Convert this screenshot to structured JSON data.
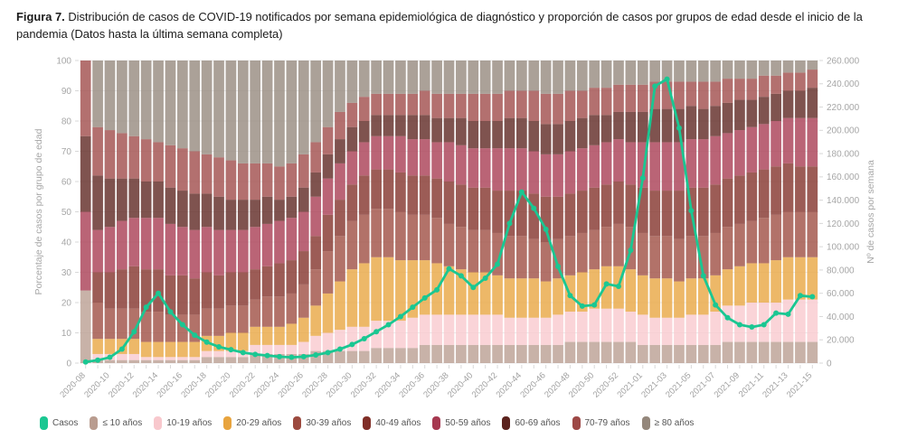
{
  "title": {
    "bold": "Figura 7.",
    "rest": " Distribución de casos de COVID-19 notificados por semana epidemiológica de diagnóstico y proporción de casos por grupos de edad desde el inicio de la pandemia (Datos hasta la última semana completa)"
  },
  "chart_data": {
    "type": "combo_stacked100_bar_plus_line",
    "left_axis": {
      "label": "Porcentaje de casos por grupo de edad",
      "min": 0,
      "max": 100,
      "step": 10
    },
    "right_axis": {
      "label": "Nº de casos por semana",
      "min": 0,
      "max": 260000,
      "step": 20000
    },
    "weeks": [
      "2020-08",
      "2020-09",
      "2020-10",
      "2020-11",
      "2020-12",
      "2020-13",
      "2020-14",
      "2020-15",
      "2020-16",
      "2020-17",
      "2020-18",
      "2020-19",
      "2020-20",
      "2020-21",
      "2020-22",
      "2020-23",
      "2020-24",
      "2020-25",
      "2020-26",
      "2020-27",
      "2020-28",
      "2020-29",
      "2020-30",
      "2020-31",
      "2020-32",
      "2020-33",
      "2020-34",
      "2020-35",
      "2020-36",
      "2020-37",
      "2020-38",
      "2020-39",
      "2020-40",
      "2020-41",
      "2020-42",
      "2020-43",
      "2020-44",
      "2020-45",
      "2020-46",
      "2020-47",
      "2020-48",
      "2020-49",
      "2020-50",
      "2020-51",
      "2020-52",
      "2020-53",
      "2021-01",
      "2021-02",
      "2021-03",
      "2021-04",
      "2021-05",
      "2021-06",
      "2021-07",
      "2021-08",
      "2021-09",
      "2021-10",
      "2021-11",
      "2021-12",
      "2021-13",
      "2021-14",
      "2021-15"
    ],
    "x_tick_labels": [
      "2020-08",
      "2020-10",
      "2020-12",
      "2020-14",
      "2020-16",
      "2020-18",
      "2020-20",
      "2020-22",
      "2020-24",
      "2020-26",
      "2020-28",
      "2020-30",
      "2020-32",
      "2020-34",
      "2020-36",
      "2020-38",
      "2020-40",
      "2020-42",
      "2020-44",
      "2020-46",
      "2020-48",
      "2020-50",
      "2020-52",
      "2021-01",
      "2021-03",
      "2021-05",
      "2021-07",
      "2021-09",
      "2021-11",
      "2021-13",
      "2021-15"
    ],
    "groups": [
      {
        "name": "≤ 10 años",
        "color": "#B99C8F"
      },
      {
        "name": "10-19 años",
        "color": "#F8C8CD"
      },
      {
        "name": "20-29 años",
        "color": "#E8A43E"
      },
      {
        "name": "30-39 años",
        "color": "#9C4A3F"
      },
      {
        "name": "40-49 años",
        "color": "#802E27"
      },
      {
        "name": "50-59 años",
        "color": "#A63850"
      },
      {
        "name": "60-69 años",
        "color": "#5B221D"
      },
      {
        "name": "70-79 años",
        "color": "#9D4846"
      },
      {
        "name": "≥ 80 años",
        "color": "#94877B"
      }
    ],
    "stacks_percent_by_week": [
      [
        24,
        0,
        0,
        0,
        0,
        26,
        25,
        25,
        0
      ],
      [
        1,
        2,
        5,
        12,
        10,
        14,
        18,
        16,
        22
      ],
      [
        1,
        2,
        5,
        10,
        12,
        15,
        16,
        16,
        23
      ],
      [
        1,
        2,
        5,
        10,
        13,
        16,
        14,
        15,
        24
      ],
      [
        1,
        2,
        5,
        10,
        14,
        16,
        13,
        14,
        25
      ],
      [
        1,
        1,
        5,
        10,
        14,
        17,
        12,
        14,
        26
      ],
      [
        1,
        1,
        5,
        10,
        14,
        17,
        12,
        13,
        27
      ],
      [
        1,
        1,
        5,
        9,
        13,
        17,
        12,
        14,
        28
      ],
      [
        1,
        1,
        5,
        9,
        13,
        16,
        12,
        14,
        29
      ],
      [
        1,
        1,
        5,
        9,
        12,
        16,
        12,
        14,
        30
      ],
      [
        2,
        2,
        5,
        9,
        12,
        15,
        11,
        13,
        31
      ],
      [
        2,
        2,
        5,
        9,
        11,
        15,
        11,
        13,
        32
      ],
      [
        2,
        2,
        6,
        9,
        11,
        14,
        10,
        13,
        33
      ],
      [
        2,
        2,
        6,
        9,
        11,
        14,
        10,
        12,
        34
      ],
      [
        3,
        3,
        6,
        9,
        10,
        14,
        9,
        12,
        34
      ],
      [
        3,
        3,
        6,
        10,
        10,
        14,
        9,
        11,
        34
      ],
      [
        3,
        3,
        6,
        10,
        11,
        14,
        7,
        11,
        35
      ],
      [
        3,
        3,
        7,
        10,
        11,
        14,
        7,
        11,
        34
      ],
      [
        3,
        4,
        8,
        11,
        11,
        13,
        8,
        11,
        31
      ],
      [
        4,
        5,
        10,
        12,
        11,
        13,
        8,
        10,
        27
      ],
      [
        4,
        6,
        13,
        14,
        12,
        12,
        8,
        9,
        22
      ],
      [
        4,
        7,
        16,
        15,
        12,
        12,
        8,
        9,
        17
      ],
      [
        4,
        8,
        19,
        16,
        12,
        11,
        8,
        8,
        14
      ],
      [
        4,
        8,
        21,
        16,
        13,
        11,
        7,
        8,
        12
      ],
      [
        5,
        9,
        21,
        16,
        13,
        11,
        7,
        7,
        11
      ],
      [
        5,
        9,
        21,
        16,
        13,
        11,
        7,
        7,
        11
      ],
      [
        5,
        9,
        20,
        16,
        13,
        12,
        7,
        7,
        11
      ],
      [
        5,
        10,
        19,
        15,
        13,
        12,
        8,
        7,
        11
      ],
      [
        6,
        10,
        18,
        15,
        13,
        12,
        8,
        8,
        10
      ],
      [
        6,
        10,
        17,
        15,
        13,
        12,
        8,
        8,
        11
      ],
      [
        6,
        10,
        16,
        14,
        14,
        13,
        8,
        8,
        11
      ],
      [
        6,
        10,
        15,
        14,
        14,
        13,
        9,
        8,
        11
      ],
      [
        6,
        10,
        14,
        14,
        14,
        13,
        9,
        9,
        11
      ],
      [
        6,
        10,
        14,
        14,
        14,
        13,
        9,
        9,
        11
      ],
      [
        6,
        10,
        13,
        14,
        14,
        14,
        9,
        9,
        11
      ],
      [
        6,
        9,
        13,
        14,
        15,
        14,
        10,
        9,
        10
      ],
      [
        6,
        9,
        13,
        14,
        15,
        14,
        10,
        9,
        10
      ],
      [
        6,
        9,
        13,
        13,
        15,
        14,
        10,
        10,
        10
      ],
      [
        6,
        9,
        12,
        13,
        15,
        14,
        10,
        10,
        11
      ],
      [
        6,
        10,
        12,
        13,
        14,
        14,
        10,
        10,
        11
      ],
      [
        7,
        10,
        12,
        13,
        14,
        14,
        10,
        10,
        10
      ],
      [
        7,
        10,
        13,
        13,
        14,
        14,
        10,
        9,
        10
      ],
      [
        7,
        11,
        13,
        13,
        14,
        14,
        10,
        9,
        9
      ],
      [
        7,
        11,
        14,
        13,
        14,
        14,
        9,
        9,
        9
      ],
      [
        7,
        11,
        14,
        14,
        14,
        14,
        9,
        9,
        8
      ],
      [
        7,
        10,
        14,
        14,
        14,
        14,
        10,
        9,
        8
      ],
      [
        6,
        10,
        13,
        14,
        15,
        15,
        10,
        9,
        8
      ],
      [
        6,
        9,
        13,
        14,
        15,
        16,
        11,
        9,
        7
      ],
      [
        6,
        9,
        13,
        14,
        15,
        16,
        11,
        9,
        7
      ],
      [
        6,
        9,
        12,
        14,
        16,
        16,
        11,
        9,
        7
      ],
      [
        6,
        10,
        12,
        14,
        16,
        16,
        11,
        8,
        7
      ],
      [
        6,
        10,
        12,
        14,
        16,
        16,
        10,
        9,
        7
      ],
      [
        6,
        11,
        12,
        14,
        16,
        16,
        10,
        8,
        7
      ],
      [
        7,
        12,
        12,
        14,
        16,
        15,
        10,
        8,
        6
      ],
      [
        7,
        12,
        13,
        14,
        16,
        15,
        10,
        7,
        6
      ],
      [
        7,
        13,
        13,
        14,
        16,
        15,
        9,
        7,
        6
      ],
      [
        7,
        13,
        13,
        15,
        16,
        15,
        9,
        7,
        5
      ],
      [
        7,
        13,
        14,
        15,
        16,
        15,
        9,
        6,
        5
      ],
      [
        7,
        14,
        14,
        15,
        16,
        15,
        9,
        6,
        4
      ],
      [
        7,
        14,
        14,
        15,
        15,
        16,
        9,
        6,
        4
      ],
      [
        7,
        14,
        14,
        15,
        15,
        16,
        10,
        6,
        3
      ]
    ],
    "line": {
      "name": "Casos",
      "color": "#1AC792",
      "values": [
        1000,
        2500,
        5000,
        12000,
        27000,
        48000,
        60000,
        44000,
        33000,
        24000,
        18000,
        14000,
        11500,
        9000,
        7500,
        6500,
        5500,
        5000,
        5500,
        7000,
        9000,
        12000,
        16000,
        21000,
        27000,
        33000,
        40000,
        48000,
        56000,
        63000,
        81000,
        75000,
        65000,
        73000,
        85000,
        120000,
        147000,
        133000,
        115000,
        83000,
        58000,
        49000,
        50000,
        68000,
        66000,
        97000,
        159000,
        238000,
        244000,
        202000,
        131000,
        75000,
        50000,
        39000,
        33000,
        31000,
        33000,
        43000,
        42000,
        58000,
        57000
      ]
    },
    "legend_position": "bottom-left",
    "grid": true
  }
}
